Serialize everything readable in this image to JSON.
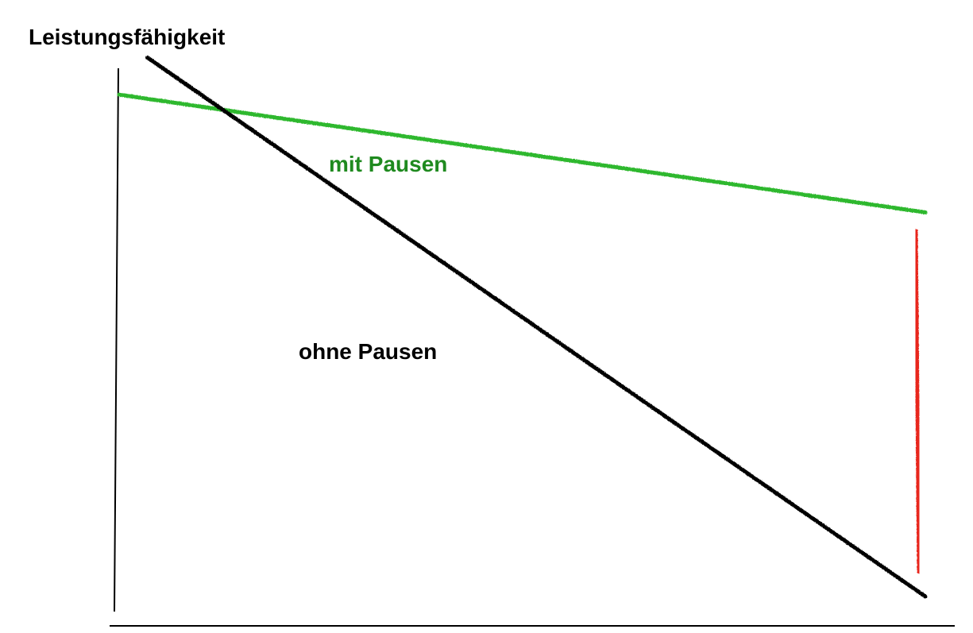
{
  "chart_data": {
    "type": "line",
    "ylabel": "Leistungsfähigkeit",
    "xlabel": "",
    "x": [
      0,
      1
    ],
    "ylim": [
      0,
      1
    ],
    "xlim": [
      0,
      1
    ],
    "grid": false,
    "series": [
      {
        "name": "mit Pausen",
        "color": "#2db82d",
        "label_color": "#1f8a1f",
        "values": [
          0.86,
          0.67
        ]
      },
      {
        "name": "ohne Pausen",
        "color": "#000000",
        "label_color": "#000000",
        "values": [
          0.92,
          0.05
        ]
      }
    ],
    "annotations": [
      {
        "type": "difference-marker",
        "color": "#e8271d",
        "from": 0.64,
        "to": 0.09,
        "x": 1
      }
    ]
  }
}
